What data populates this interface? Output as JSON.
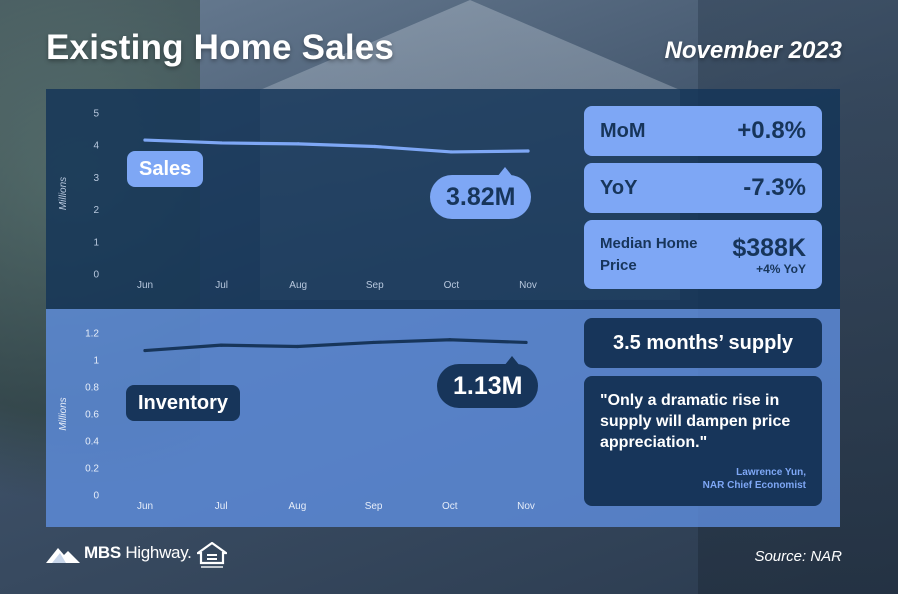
{
  "header": {
    "title": "Existing Home Sales",
    "date": "November 2023"
  },
  "chart_data": [
    {
      "type": "line",
      "series": [
        {
          "name": "Sales",
          "values": [
            4.16,
            4.07,
            4.04,
            3.96,
            3.79,
            3.82
          ]
        }
      ],
      "categories": [
        "Jun",
        "Jul",
        "Aug",
        "Sep",
        "Oct",
        "Nov"
      ],
      "ylabel": "Millions",
      "ylim": [
        0,
        5
      ],
      "yticks": [
        0,
        1,
        2,
        3,
        4,
        5
      ],
      "series_label": "Sales",
      "callout": "3.82M",
      "line_color": "#7ea7f5",
      "grid": false
    },
    {
      "type": "line",
      "series": [
        {
          "name": "Inventory",
          "values": [
            1.07,
            1.11,
            1.1,
            1.13,
            1.15,
            1.13
          ]
        }
      ],
      "categories": [
        "Jun",
        "Jul",
        "Aug",
        "Sep",
        "Oct",
        "Nov"
      ],
      "ylabel": "Millions",
      "ylim": [
        0,
        1.2
      ],
      "yticks": [
        "0",
        "0.2",
        "0.4",
        "0.6",
        "0.8",
        "1",
        "1.2"
      ],
      "series_label": "Inventory",
      "callout": "1.13M",
      "line_color": "#17355a",
      "grid": false
    }
  ],
  "stats": {
    "mom": {
      "label": "MoM",
      "value": "+0.8%"
    },
    "yoy": {
      "label": "YoY",
      "value": "-7.3%"
    },
    "median": {
      "label": "Median Home Price",
      "value": "$388K",
      "sub": "+4% YoY"
    }
  },
  "supply": "3.5 months’ supply",
  "quote": {
    "text": "\"Only a dramatic rise in supply will dampen price appreciation.\"",
    "author": "Lawrence Yun,",
    "role": "NAR Chief Economist"
  },
  "footer": {
    "brand_name": "MBS",
    "brand_suffix": " Highway.",
    "source": "Source: NAR",
    "icons": [
      "mountain-logo-icon",
      "equal-housing-icon"
    ]
  },
  "colors": {
    "panel_top": "#143458",
    "panel_bottom": "#5f8ee0",
    "accent_light": "#7ea7f5",
    "accent_dark": "#17355a"
  }
}
